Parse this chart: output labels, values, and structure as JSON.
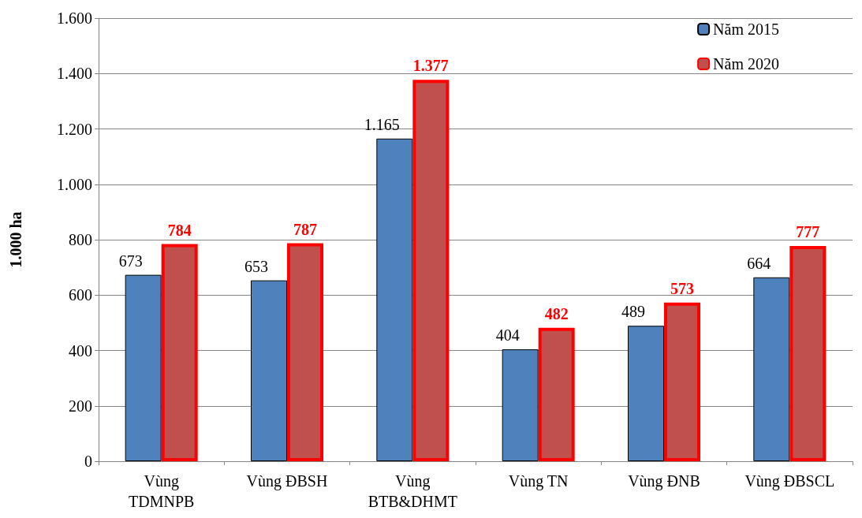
{
  "chart_data": {
    "type": "bar",
    "ylabel": "1.000 ha",
    "categories": [
      "Vùng\nTDMNPB",
      "Vùng ĐBSH",
      "Vùng\nBTB&DHMT",
      "Vùng TN",
      "Vùng ĐNB",
      "Vùng ĐBSCL"
    ],
    "series": [
      {
        "name": "Năm 2015",
        "color": "#4f81bd",
        "values": [
          673,
          653,
          1165,
          404,
          489,
          664
        ],
        "value_labels": [
          "673",
          "653",
          "1.165",
          "404",
          "489",
          "664"
        ]
      },
      {
        "name": "Năm 2020",
        "color": "#c0504d",
        "values": [
          784,
          787,
          1377,
          482,
          573,
          777
        ],
        "value_labels": [
          "784",
          "787",
          "1.377",
          "482",
          "573",
          "777"
        ]
      }
    ],
    "ylim": [
      0,
      1600
    ],
    "yticks": [
      0,
      200,
      400,
      600,
      800,
      {
        "value": 1000,
        "label": "1.000"
      },
      {
        "value": 1200,
        "label": "1.200"
      },
      {
        "value": 1400,
        "label": "1.400"
      },
      {
        "value": 1600,
        "label": "1.600"
      }
    ],
    "grid": "y",
    "legend": "top right"
  }
}
